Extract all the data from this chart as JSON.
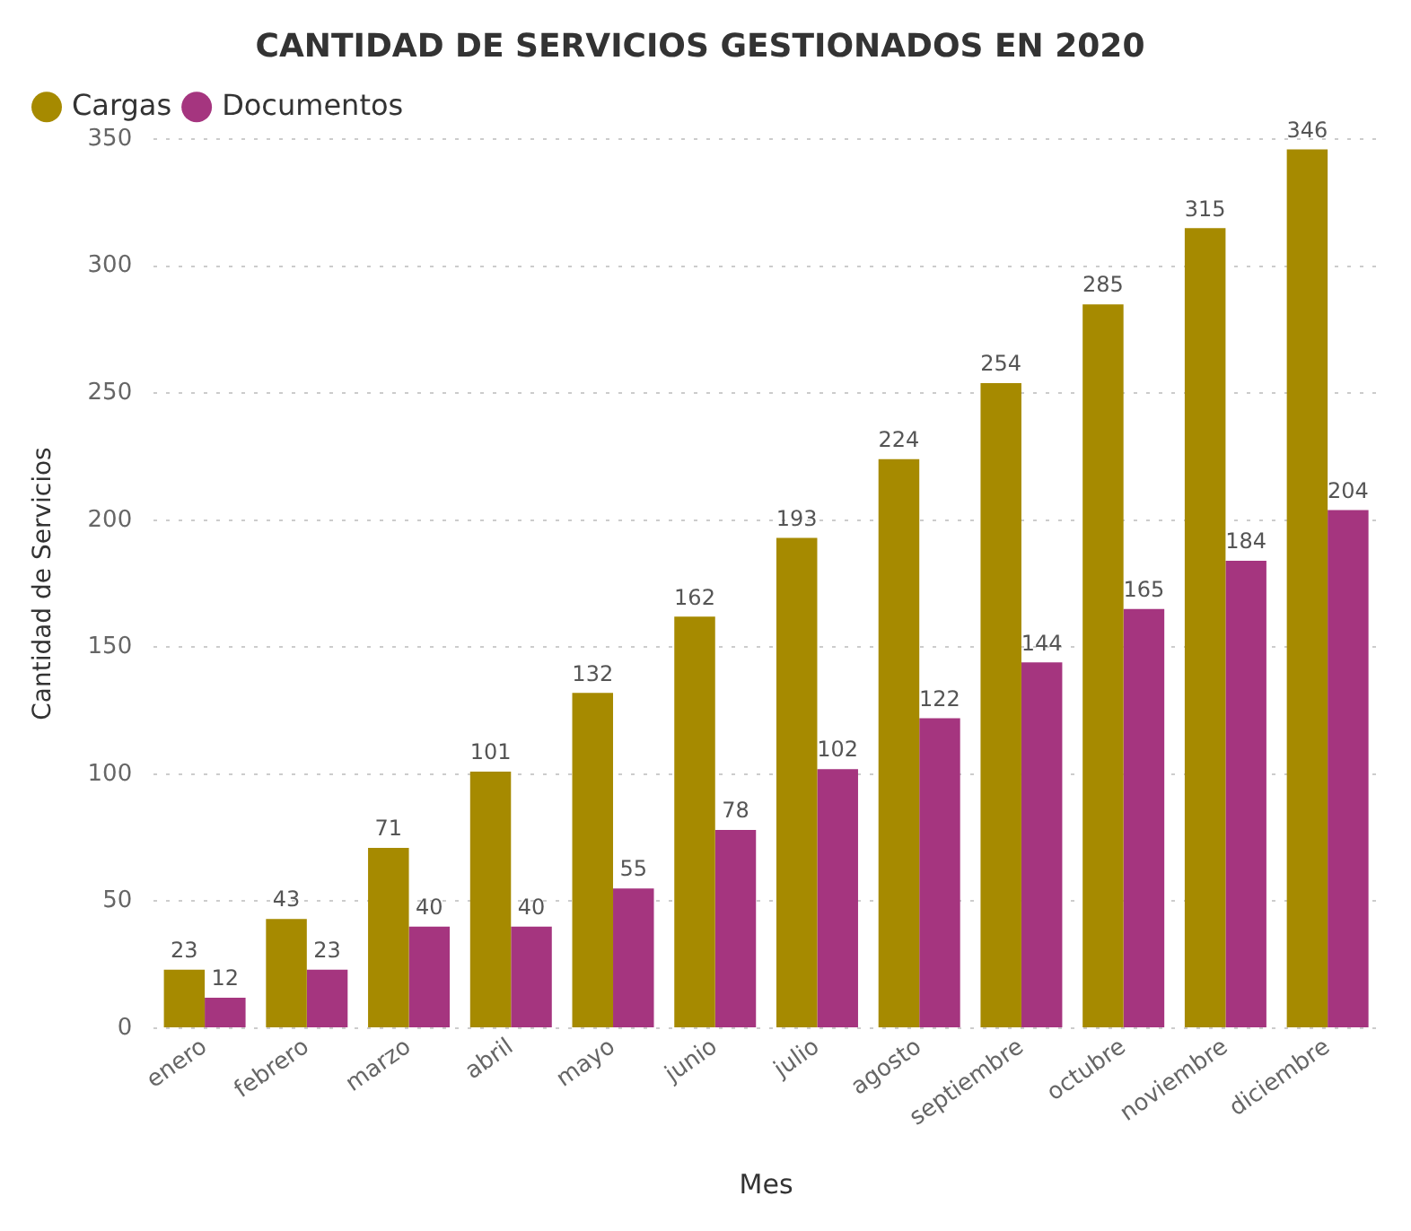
{
  "chart_data": {
    "type": "bar",
    "title": "CANTIDAD DE SERVICIOS GESTIONADOS EN 2020",
    "xlabel": "Mes",
    "ylabel": "Cantidad de Servicios",
    "categories": [
      "enero",
      "febrero",
      "marzo",
      "abril",
      "mayo",
      "junio",
      "julio",
      "agosto",
      "septiembre",
      "octubre",
      "noviembre",
      "diciembre"
    ],
    "series": [
      {
        "name": "Cargas",
        "color": "#a68a00",
        "values": [
          23,
          43,
          71,
          101,
          132,
          162,
          193,
          224,
          254,
          285,
          315,
          346
        ]
      },
      {
        "name": "Documentos",
        "color": "#a5357f",
        "values": [
          12,
          23,
          40,
          40,
          55,
          78,
          102,
          122,
          144,
          165,
          184,
          204
        ]
      }
    ],
    "ylim": [
      0,
      350
    ],
    "yticks": [
      0,
      50,
      100,
      150,
      200,
      250,
      300,
      350
    ],
    "grid": "y",
    "legend": "top left",
    "data_labels": true
  }
}
